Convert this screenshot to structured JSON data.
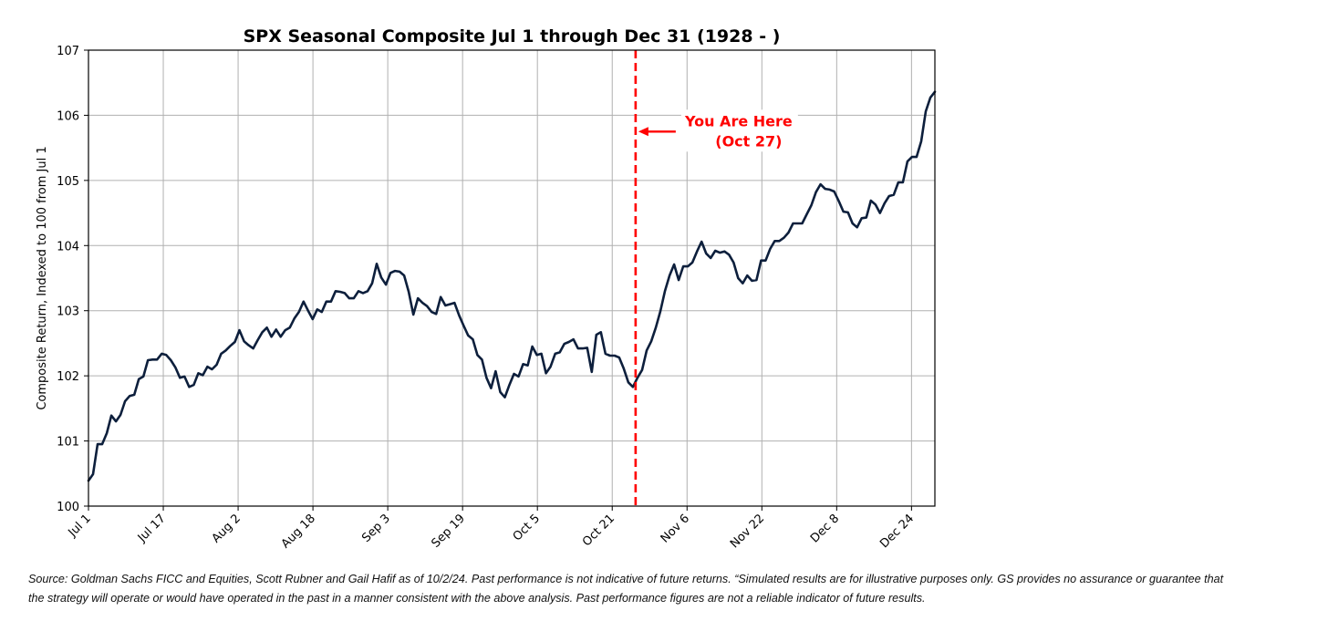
{
  "chart_data": {
    "type": "line",
    "title": "SPX Seasonal Composite Jul 1 through Dec 31 (1928 - )",
    "xlabel": "",
    "ylabel": "Composite Return, Indexed to 100 from Jul 1",
    "ylim": [
      100,
      107
    ],
    "yticks": [
      100,
      101,
      102,
      103,
      104,
      105,
      106,
      107
    ],
    "xlim_days": [
      0,
      181
    ],
    "xticks": [
      {
        "label": "Jul 1",
        "day": 0
      },
      {
        "label": "Jul 17",
        "day": 16
      },
      {
        "label": "Aug 2",
        "day": 32
      },
      {
        "label": "Aug 18",
        "day": 48
      },
      {
        "label": "Sep 3",
        "day": 64
      },
      {
        "label": "Sep 19",
        "day": 80
      },
      {
        "label": "Oct 5",
        "day": 96
      },
      {
        "label": "Oct 21",
        "day": 112
      },
      {
        "label": "Nov 6",
        "day": 128
      },
      {
        "label": "Nov 22",
        "day": 144
      },
      {
        "label": "Dec 8",
        "day": 160
      },
      {
        "label": "Dec 24",
        "day": 176
      }
    ],
    "grid": true,
    "series": [
      {
        "name": "SPX Seasonal Composite",
        "color": "#0d1f3c",
        "values": [
          100.39,
          100.49,
          100.95,
          100.95,
          101.12,
          101.39,
          101.3,
          101.4,
          101.61,
          101.69,
          101.71,
          101.95,
          101.99,
          102.24,
          102.25,
          102.25,
          102.34,
          102.32,
          102.24,
          102.13,
          101.97,
          101.99,
          101.83,
          101.86,
          102.04,
          102.01,
          102.14,
          102.1,
          102.17,
          102.34,
          102.39,
          102.46,
          102.52,
          102.7,
          102.53,
          102.47,
          102.42,
          102.55,
          102.67,
          102.74,
          102.6,
          102.71,
          102.6,
          102.7,
          102.74,
          102.88,
          102.98,
          103.14,
          103.0,
          102.87,
          103.02,
          102.98,
          103.14,
          103.14,
          103.3,
          103.29,
          103.27,
          103.19,
          103.19,
          103.3,
          103.27,
          103.3,
          103.42,
          103.72,
          103.51,
          103.4,
          103.58,
          103.61,
          103.6,
          103.54,
          103.29,
          102.94,
          103.19,
          103.12,
          103.07,
          102.98,
          102.95,
          103.21,
          103.08,
          103.1,
          103.12,
          102.93,
          102.77,
          102.62,
          102.56,
          102.32,
          102.25,
          101.97,
          101.81,
          102.07,
          101.75,
          101.67,
          101.86,
          102.03,
          101.99,
          102.18,
          102.16,
          102.45,
          102.32,
          102.34,
          102.04,
          102.14,
          102.34,
          102.36,
          102.49,
          102.52,
          102.56,
          102.42,
          102.42,
          102.43,
          102.06,
          102.63,
          102.67,
          102.34,
          102.31,
          102.31,
          102.28,
          102.11,
          101.9,
          101.83,
          101.97,
          102.09,
          102.39,
          102.53,
          102.74,
          102.99,
          103.3,
          103.54,
          103.71,
          103.47,
          103.68,
          103.68,
          103.74,
          103.91,
          104.06,
          103.88,
          103.81,
          103.92,
          103.89,
          103.91,
          103.86,
          103.74,
          103.5,
          103.42,
          103.54,
          103.46,
          103.47,
          103.77,
          103.77,
          103.95,
          104.07,
          104.07,
          104.12,
          104.2,
          104.34,
          104.34,
          104.34,
          104.48,
          104.62,
          104.82,
          104.94,
          104.87,
          104.86,
          104.83,
          104.68,
          104.52,
          104.51,
          104.34,
          104.28,
          104.42,
          104.43,
          104.69,
          104.63,
          104.5,
          104.65,
          104.76,
          104.78,
          104.97,
          104.97,
          105.29,
          105.36,
          105.36,
          105.6,
          106.06,
          106.27,
          106.36
        ]
      }
    ],
    "annotations": [
      {
        "type": "vline",
        "day": 117,
        "color": "#ff0000",
        "style": "dashed",
        "text_line1": "You Are Here",
        "text_line2": "(Oct 27)",
        "arrow": "left",
        "text_value": 105.75
      }
    ]
  },
  "footnote": {
    "line1": "Source: Goldman Sachs FICC and Equities, Scott Rubner and Gail Hafif as of 10/2/24. Past performance is not indicative of future returns. “Simulated results are for illustrative purposes only. GS provides no assurance or guarantee that",
    "line2": "the strategy will operate or would have operated in the past in a manner consistent with the above analysis. Past performance figures are not a reliable indicator of future results."
  }
}
